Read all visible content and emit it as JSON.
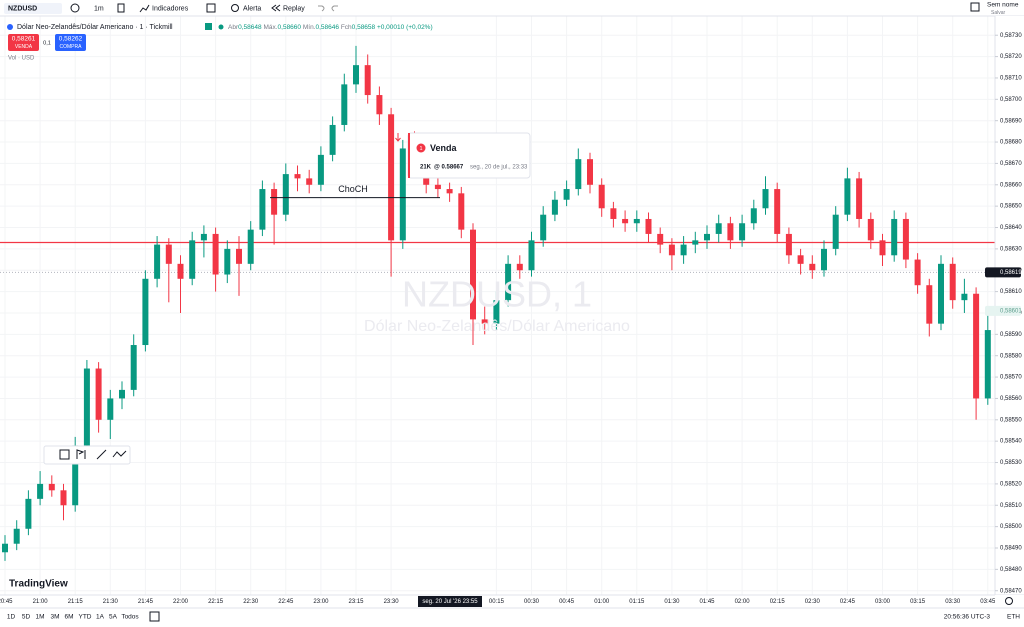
{
  "toolbar": {
    "symbol": "NZDUSD",
    "interval": "1m",
    "indicators": "Indicadores",
    "alert": "Alerta",
    "replay": "Replay",
    "layout_name": "Sem nome",
    "save": "Salvar"
  },
  "legend": {
    "title": "Dólar Neo-Zelandês/Dólar Americano · 1 · Tickmill",
    "open_label": "Abr",
    "open": "0,58648",
    "high_label": "Máx.",
    "high": "0,58660",
    "low_label": "Mín.",
    "low": "0,58646",
    "close_label": "Fch",
    "close": "0,58658",
    "change": "+0,00010 (+0,02%)"
  },
  "trade": {
    "sell_price": "0,58261",
    "sell": "VENDA",
    "spread": "0,1",
    "buy_price": "0,58262",
    "buy": "COMPRA",
    "volume": "Vol · USD"
  },
  "order_note": {
    "index": "1",
    "title": "Venda",
    "qty": "21K",
    "price": "@ 0.58667",
    "time": "seg., 20 de jul., 23:33"
  },
  "logo": "TradingView",
  "bottom_bar": {
    "ranges": [
      "1D",
      "5D",
      "1M",
      "3M",
      "6M",
      "YTD",
      "1A",
      "5A",
      "Todos"
    ],
    "clock": "20:56:36 UTC-3",
    "session": "ETH"
  },
  "chart_data": {
    "type": "candlestick",
    "x": [
      "20:45",
      null,
      null,
      "21:00",
      null,
      null,
      "21:15",
      null,
      null,
      "21:30",
      null,
      null,
      "21:45",
      null,
      null,
      "22:00",
      null,
      null,
      "22:15",
      null,
      null,
      "22:30",
      null,
      null,
      "22:45",
      null,
      null,
      "23:00",
      null,
      null,
      "23:15",
      null,
      null,
      "23:30",
      null,
      null,
      null,
      null,
      null,
      null,
      null,
      null,
      "00:15",
      null,
      null,
      "00:30",
      null,
      null,
      "00:45",
      null,
      null,
      "01:00",
      null,
      null,
      "01:15",
      null,
      null,
      "01:30",
      null,
      null,
      "01:45",
      null,
      null,
      "02:00",
      null,
      null,
      "02:15",
      null,
      null,
      "02:30",
      null,
      null,
      "02:45",
      null,
      null,
      "03:00",
      null,
      null,
      "03:15",
      null,
      null,
      "03:30",
      null,
      null,
      "03:45"
    ],
    "open": [
      0.58488,
      0.58492,
      0.58499,
      0.58513,
      0.5852,
      0.58517,
      0.5851,
      0.58538,
      0.58574,
      0.5855,
      0.5856,
      0.58564,
      0.58585,
      0.58616,
      0.58632,
      0.58623,
      0.58616,
      0.58634,
      0.58637,
      0.58618,
      0.5863,
      0.58623,
      0.58639,
      0.58658,
      0.58646,
      0.58665,
      0.58663,
      0.5866,
      0.58674,
      0.58688,
      0.58707,
      0.58716,
      0.58702,
      0.58693,
      0.58634,
      0.58677,
      0.58672,
      0.5866,
      0.58658,
      0.58656,
      0.58639,
      0.58597,
      0.58595,
      0.58606,
      0.58623,
      0.5862,
      0.58634,
      0.58646,
      0.58653,
      0.58658,
      0.58672,
      0.5866,
      0.58649,
      0.58644,
      0.58642,
      0.58644,
      0.58637,
      0.58632,
      0.58627,
      0.58632,
      0.58634,
      0.58637,
      0.58642,
      0.58634,
      0.58642,
      0.58649,
      0.58658,
      0.58637,
      0.58627,
      0.58623,
      0.5862,
      0.5863,
      0.58646,
      0.58663,
      0.58644,
      0.58634,
      0.58627,
      0.58644,
      0.58625,
      0.58613,
      0.58595,
      0.58623,
      0.58606,
      0.58609,
      0.5856
    ],
    "high": [
      0.58496,
      0.58503,
      0.58517,
      0.58526,
      0.58524,
      0.5852,
      0.58542,
      0.58578,
      0.58577,
      0.58564,
      0.58568,
      0.5859,
      0.5862,
      0.58636,
      0.58635,
      0.58627,
      0.58638,
      0.58641,
      0.5864,
      0.58634,
      0.58636,
      0.58643,
      0.58662,
      0.58661,
      0.5867,
      0.58669,
      0.58667,
      0.58678,
      0.58692,
      0.58712,
      0.58725,
      0.58721,
      0.58706,
      0.58696,
      0.58681,
      0.58685,
      0.58675,
      0.58664,
      0.58661,
      0.58659,
      0.58642,
      0.58603,
      0.5861,
      0.58627,
      0.58627,
      0.58638,
      0.5865,
      0.58657,
      0.58662,
      0.58677,
      0.58675,
      0.58663,
      0.58652,
      0.58648,
      0.58648,
      0.58647,
      0.5864,
      0.58635,
      0.58636,
      0.58638,
      0.58641,
      0.58646,
      0.58645,
      0.58646,
      0.58653,
      0.58664,
      0.58661,
      0.5864,
      0.5863,
      0.58627,
      0.58634,
      0.5865,
      0.58668,
      0.58666,
      0.58647,
      0.58637,
      0.58648,
      0.58647,
      0.58628,
      0.58616,
      0.58627,
      0.58626,
      0.58616,
      0.58612,
      0.58599
    ],
    "low": [
      0.58484,
      0.58489,
      0.58496,
      0.5851,
      0.58514,
      0.58503,
      0.58507,
      0.58535,
      0.58544,
      0.58541,
      0.58555,
      0.58561,
      0.58582,
      0.58612,
      0.58605,
      0.586,
      0.58613,
      0.58626,
      0.5861,
      0.58614,
      0.58608,
      0.5862,
      0.58636,
      0.58632,
      0.58643,
      0.58657,
      0.58656,
      0.58657,
      0.58671,
      0.58685,
      0.58703,
      0.58698,
      0.58688,
      0.58617,
      0.5863,
      0.58668,
      0.58656,
      0.58654,
      0.58652,
      0.58635,
      0.58585,
      0.5859,
      0.58592,
      0.58603,
      0.58616,
      0.58617,
      0.58631,
      0.58643,
      0.5865,
      0.58655,
      0.58656,
      0.58645,
      0.5864,
      0.58638,
      0.58638,
      0.58633,
      0.58628,
      0.5862,
      0.58623,
      0.58628,
      0.5863,
      0.58633,
      0.5863,
      0.58631,
      0.58639,
      0.58646,
      0.58633,
      0.58623,
      0.58618,
      0.58616,
      0.58617,
      0.58627,
      0.58643,
      0.5864,
      0.5863,
      0.58622,
      0.58624,
      0.58621,
      0.58609,
      0.58589,
      0.58592,
      0.58602,
      0.586,
      0.5855,
      0.58557
    ],
    "close": [
      0.58492,
      0.58499,
      0.58513,
      0.5852,
      0.58517,
      0.5851,
      0.58538,
      0.58574,
      0.5855,
      0.5856,
      0.58564,
      0.58585,
      0.58616,
      0.58632,
      0.58623,
      0.58616,
      0.58634,
      0.58637,
      0.58618,
      0.5863,
      0.58623,
      0.58639,
      0.58658,
      0.58646,
      0.58665,
      0.58663,
      0.5866,
      0.58674,
      0.58688,
      0.58707,
      0.58716,
      0.58702,
      0.58693,
      0.58634,
      0.58677,
      0.58672,
      0.5866,
      0.58658,
      0.58656,
      0.58639,
      0.58597,
      0.58595,
      0.58606,
      0.58623,
      0.5862,
      0.58634,
      0.58646,
      0.58653,
      0.58658,
      0.58672,
      0.5866,
      0.58649,
      0.58644,
      0.58642,
      0.58644,
      0.58637,
      0.58632,
      0.58627,
      0.58632,
      0.58634,
      0.58637,
      0.58642,
      0.58634,
      0.58642,
      0.58649,
      0.58658,
      0.58637,
      0.58627,
      0.58623,
      0.5862,
      0.5863,
      0.58646,
      0.58663,
      0.58644,
      0.58634,
      0.58627,
      0.58644,
      0.58625,
      0.58613,
      0.58595,
      0.58623,
      0.58606,
      0.58609,
      0.5856,
      0.58592
    ],
    "up_color": "#089981",
    "down_color": "#f23645",
    "ylim": [
      0.58468,
      0.58739
    ],
    "yticks": [
      {
        "value": 0.5847,
        "label": "0,58470"
      },
      {
        "value": 0.5848,
        "label": "0,58480"
      },
      {
        "value": 0.5849,
        "label": "0,58490"
      },
      {
        "value": 0.585,
        "label": "0,58500"
      },
      {
        "value": 0.5851,
        "label": "0,58510"
      },
      {
        "value": 0.5852,
        "label": "0,58520"
      },
      {
        "value": 0.5853,
        "label": "0,58530"
      },
      {
        "value": 0.5854,
        "label": "0,58540"
      },
      {
        "value": 0.5855,
        "label": "0,58550"
      },
      {
        "value": 0.5856,
        "label": "0,58560"
      },
      {
        "value": 0.5857,
        "label": "0,58570"
      },
      {
        "value": 0.5858,
        "label": "0,58580"
      },
      {
        "value": 0.5859,
        "label": "0,58590"
      },
      {
        "value": 0.586,
        "label": "0,58600"
      },
      {
        "value": 0.5861,
        "label": "0,58610"
      },
      {
        "value": 0.5862,
        "label": "0,58620"
      },
      {
        "value": 0.5863,
        "label": "0,58630"
      },
      {
        "value": 0.5864,
        "label": "0,58640"
      },
      {
        "value": 0.5865,
        "label": "0,58650"
      },
      {
        "value": 0.5866,
        "label": "0,58660"
      },
      {
        "value": 0.5867,
        "label": "0,58670"
      },
      {
        "value": 0.5868,
        "label": "0,58680"
      },
      {
        "value": 0.5869,
        "label": "0,58690"
      },
      {
        "value": 0.587,
        "label": "0,58700"
      },
      {
        "value": 0.5871,
        "label": "0,58710"
      },
      {
        "value": 0.5872,
        "label": "0,58720"
      },
      {
        "value": 0.5873,
        "label": "0,58730"
      }
    ],
    "grid": true,
    "horizontal_line": {
      "value": 0.58633,
      "color": "#f23645"
    },
    "choch": {
      "label": "ChoCH",
      "value": 0.58654
    },
    "last_price": {
      "value": 0.58619,
      "label": "0,58619"
    },
    "price_marker": {
      "value": 0.58601,
      "label": "0,58601"
    },
    "crosshair_label": "seg. 20 Jul '26 23:55",
    "watermark": {
      "title": "NZDUSD, 1",
      "subtitle": "Dólar Neo-Zelandês/Dólar Americano"
    }
  }
}
